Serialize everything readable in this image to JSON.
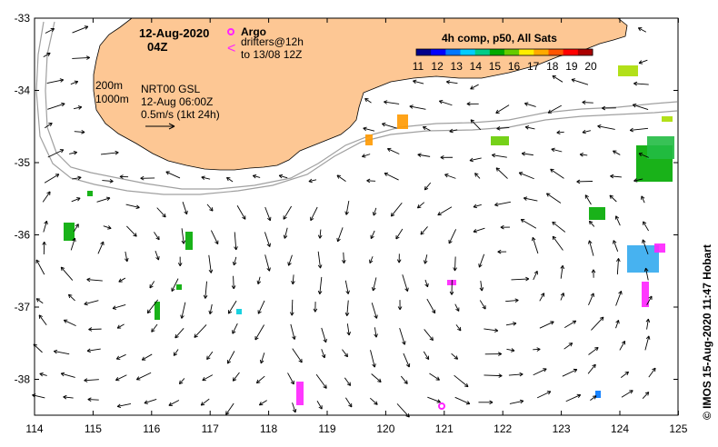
{
  "header": {
    "date": "12-Aug-2020",
    "time": "04Z"
  },
  "legend": {
    "argo_label": "Argo",
    "argo_color": "#ff22ff",
    "drifters_line1": "drifters@12h",
    "drifters_line2": "to 13/08 12Z",
    "drifter_symbol": "<",
    "drifter_color": "#ff22ff"
  },
  "info": {
    "iso200": "200m",
    "iso1000": "1000m",
    "gsl_line1": "NRT00 GSL",
    "gsl_line2": "12-Aug 06:00Z",
    "scale_text": "0.5m/s (1kt 24h)"
  },
  "colorbar": {
    "title": "4h comp, p50, All Sats",
    "ticks": [
      "11",
      "12",
      "13",
      "14",
      "15",
      "16",
      "17",
      "18",
      "19",
      "20"
    ],
    "colors": [
      "#00008b",
      "#0000ff",
      "#0077ff",
      "#00ccff",
      "#00cc88",
      "#00aa00",
      "#66cc00",
      "#ffee00",
      "#ffaa00",
      "#ff5500",
      "#ff0000",
      "#aa0000"
    ]
  },
  "credit": "© IMOS 15-Aug-2020 11:47 Hobart",
  "axes": {
    "x_ticks": [
      "114",
      "115",
      "116",
      "117",
      "118",
      "119",
      "120",
      "121",
      "122",
      "123",
      "124",
      "125"
    ],
    "y_ticks": [
      "-33",
      "-34",
      "-35",
      "-36",
      "-37",
      "-38"
    ]
  },
  "colors": {
    "land": "#fdc794",
    "isobath": "#a0a0a0"
  }
}
